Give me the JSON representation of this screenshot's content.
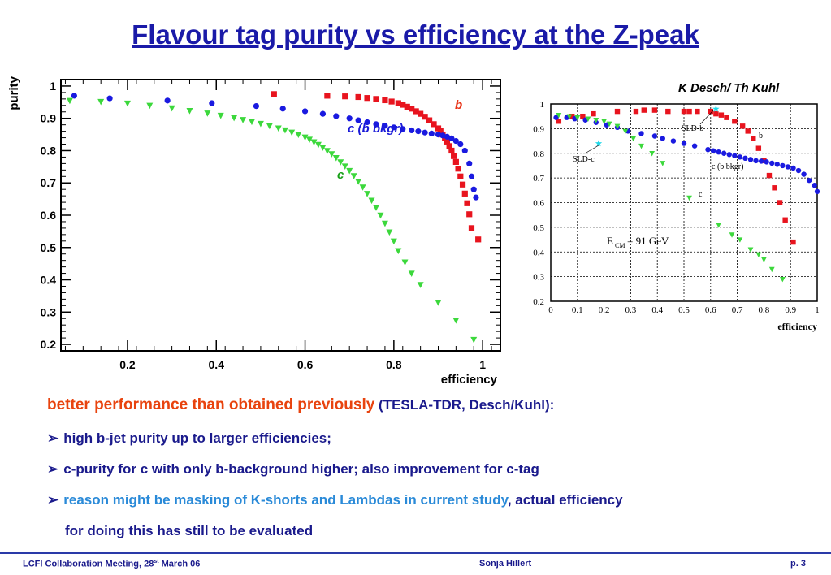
{
  "title": "Flavour tag purity vs efficiency at the Z-peak",
  "chart_data": [
    {
      "type": "scatter",
      "xlabel": "efficiency",
      "ylabel": "purity",
      "xlim": [
        0.05,
        1.04
      ],
      "ylim": [
        0.18,
        1.02
      ],
      "xticks": [
        "0.2",
        "0.4",
        "0.6",
        "0.8",
        "1"
      ],
      "yticks": [
        "0.2",
        "0.3",
        "0.4",
        "0.5",
        "0.6",
        "0.7",
        "0.8",
        "0.9",
        "1"
      ],
      "series": [
        {
          "name": "b",
          "color": "#e8141e",
          "marker": "square",
          "x": [
            0.53,
            0.65,
            0.69,
            0.72,
            0.74,
            0.76,
            0.78,
            0.795,
            0.81,
            0.82,
            0.83,
            0.84,
            0.85,
            0.86,
            0.87,
            0.88,
            0.89,
            0.9,
            0.905,
            0.91,
            0.915,
            0.92,
            0.925,
            0.93,
            0.935,
            0.94,
            0.945,
            0.95,
            0.955,
            0.96,
            0.965,
            0.97,
            0.975,
            0.99
          ],
          "y": [
            0.975,
            0.97,
            0.968,
            0.966,
            0.963,
            0.96,
            0.956,
            0.952,
            0.947,
            0.942,
            0.936,
            0.93,
            0.922,
            0.914,
            0.905,
            0.894,
            0.882,
            0.869,
            0.86,
            0.85,
            0.84,
            0.828,
            0.814,
            0.8,
            0.783,
            0.765,
            0.744,
            0.72,
            0.695,
            0.667,
            0.637,
            0.603,
            0.56,
            0.525
          ]
        },
        {
          "name": "c (b bkgr)",
          "color": "#1a1ae0",
          "marker": "circle",
          "x": [
            0.08,
            0.16,
            0.29,
            0.39,
            0.49,
            0.55,
            0.6,
            0.64,
            0.67,
            0.7,
            0.72,
            0.74,
            0.76,
            0.78,
            0.8,
            0.82,
            0.84,
            0.855,
            0.87,
            0.885,
            0.9,
            0.91,
            0.92,
            0.93,
            0.94,
            0.95,
            0.96,
            0.97,
            0.975,
            0.98,
            0.985
          ],
          "y": [
            0.97,
            0.962,
            0.955,
            0.947,
            0.938,
            0.93,
            0.922,
            0.914,
            0.907,
            0.9,
            0.894,
            0.888,
            0.882,
            0.877,
            0.872,
            0.867,
            0.863,
            0.86,
            0.856,
            0.853,
            0.85,
            0.847,
            0.843,
            0.838,
            0.83,
            0.82,
            0.8,
            0.76,
            0.72,
            0.68,
            0.655
          ]
        },
        {
          "name": "c",
          "color": "#3cd83c",
          "marker": "triangle-down",
          "x": [
            0.07,
            0.14,
            0.2,
            0.25,
            0.3,
            0.34,
            0.38,
            0.41,
            0.44,
            0.46,
            0.48,
            0.5,
            0.52,
            0.54,
            0.555,
            0.57,
            0.585,
            0.6,
            0.61,
            0.62,
            0.63,
            0.64,
            0.65,
            0.66,
            0.67,
            0.68,
            0.69,
            0.7,
            0.71,
            0.72,
            0.73,
            0.74,
            0.75,
            0.76,
            0.77,
            0.78,
            0.79,
            0.8,
            0.81,
            0.825,
            0.84,
            0.86,
            0.9,
            0.94,
            0.98
          ],
          "y": [
            0.955,
            0.952,
            0.947,
            0.94,
            0.932,
            0.924,
            0.916,
            0.909,
            0.902,
            0.896,
            0.89,
            0.884,
            0.877,
            0.87,
            0.864,
            0.857,
            0.85,
            0.842,
            0.835,
            0.827,
            0.819,
            0.81,
            0.8,
            0.79,
            0.778,
            0.765,
            0.752,
            0.738,
            0.722,
            0.705,
            0.687,
            0.667,
            0.646,
            0.624,
            0.6,
            0.575,
            0.548,
            0.52,
            0.49,
            0.455,
            0.42,
            0.385,
            0.33,
            0.275,
            0.215
          ]
        }
      ],
      "annotations": [
        "b",
        "c (b bkgr)",
        "c"
      ]
    },
    {
      "type": "scatter",
      "credit": "K Desch/ Th Kuhl",
      "xlabel": "efficiency",
      "xlim": [
        0,
        1
      ],
      "ylim": [
        0.2,
        1
      ],
      "xticks": [
        "0",
        "0.1",
        "0.2",
        "0.3",
        "0.4",
        "0.5",
        "0.6",
        "0.7",
        "0.8",
        "0.9",
        "1"
      ],
      "yticks": [
        "0.2",
        "0.3",
        "0.4",
        "0.5",
        "0.6",
        "0.7",
        "0.8",
        "0.9",
        "1"
      ],
      "grid": true,
      "series": [
        {
          "name": "b",
          "color": "#e8141e",
          "marker": "square",
          "x": [
            0.03,
            0.08,
            0.12,
            0.16,
            0.25,
            0.32,
            0.35,
            0.39,
            0.44,
            0.5,
            0.52,
            0.55,
            0.6,
            0.62,
            0.64,
            0.66,
            0.69,
            0.72,
            0.74,
            0.76,
            0.78,
            0.8,
            0.82,
            0.84,
            0.86,
            0.88,
            0.91
          ],
          "y": [
            0.93,
            0.95,
            0.95,
            0.96,
            0.97,
            0.97,
            0.975,
            0.975,
            0.97,
            0.97,
            0.97,
            0.97,
            0.97,
            0.96,
            0.955,
            0.945,
            0.93,
            0.91,
            0.89,
            0.86,
            0.82,
            0.77,
            0.71,
            0.66,
            0.6,
            0.53,
            0.44
          ]
        },
        {
          "name": "c (b bkgr)",
          "color": "#1a1ae0",
          "marker": "circle",
          "x": [
            0.02,
            0.06,
            0.09,
            0.13,
            0.17,
            0.21,
            0.25,
            0.29,
            0.34,
            0.39,
            0.42,
            0.46,
            0.5,
            0.54,
            0.59,
            0.61,
            0.63,
            0.65,
            0.67,
            0.69,
            0.71,
            0.73,
            0.75,
            0.77,
            0.79,
            0.81,
            0.83,
            0.85,
            0.87,
            0.89,
            0.91,
            0.93,
            0.95,
            0.97,
            0.99,
            1.0
          ],
          "y": [
            0.945,
            0.945,
            0.94,
            0.935,
            0.925,
            0.915,
            0.905,
            0.89,
            0.88,
            0.87,
            0.86,
            0.85,
            0.84,
            0.83,
            0.815,
            0.81,
            0.805,
            0.8,
            0.795,
            0.79,
            0.785,
            0.78,
            0.775,
            0.77,
            0.768,
            0.765,
            0.76,
            0.755,
            0.75,
            0.745,
            0.74,
            0.73,
            0.715,
            0.69,
            0.67,
            0.645
          ]
        },
        {
          "name": "c",
          "color": "#3cd83c",
          "marker": "triangle-down",
          "x": [
            0.03,
            0.07,
            0.1,
            0.14,
            0.17,
            0.2,
            0.22,
            0.25,
            0.28,
            0.31,
            0.34,
            0.38,
            0.42,
            0.52,
            0.63,
            0.68,
            0.71,
            0.75,
            0.78,
            0.8,
            0.83,
            0.87
          ],
          "y": [
            0.955,
            0.95,
            0.945,
            0.94,
            0.935,
            0.93,
            0.92,
            0.91,
            0.89,
            0.86,
            0.83,
            0.8,
            0.76,
            0.62,
            0.51,
            0.47,
            0.45,
            0.41,
            0.39,
            0.37,
            0.33,
            0.29
          ]
        },
        {
          "name": "SLD",
          "color": "#20d8e8",
          "marker": "star",
          "x": [
            0.18,
            0.62
          ],
          "y": [
            0.84,
            0.98
          ]
        }
      ],
      "annotations": [
        "SLD-b",
        "SLD-c",
        "b",
        "c (b bkgr)",
        "c"
      ],
      "energy_label": "= 91 GeV",
      "energy_symbol": "E",
      "energy_subscript": "CM"
    }
  ],
  "bullets": {
    "intro_highlight": "better performance than obtained previously",
    "intro_ref": "(TESLA-TDR, Desch/Kuhl)",
    "intro_colon": ":",
    "b1": "high b-jet purity up to larger efficiencies;",
    "b2": "c-purity for c with only b-background higher; also improvement for c-tag",
    "b3_blue": "reason might be masking of K-shorts and Lambdas in current study",
    "b3_rest": ", actual efficiency",
    "b3_cont": "for doing this has still to be evaluated",
    "arrow": "➢"
  },
  "footer": {
    "left": "LCFI Collaboration Meeting, 28",
    "left_sup": "st",
    "left_tail": " March 06",
    "middle": "Sonja Hillert",
    "right": "p. 3"
  }
}
